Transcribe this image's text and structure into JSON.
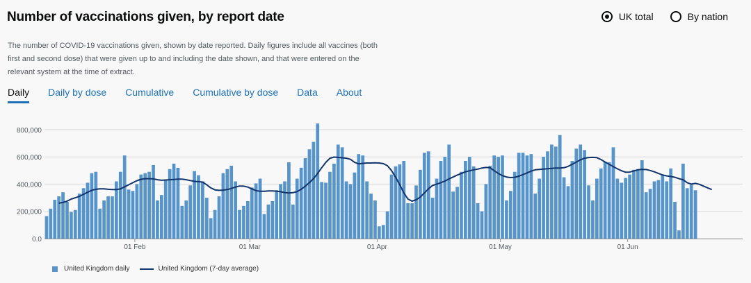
{
  "header": {
    "title": "Number of vaccinations given, by report date",
    "description": "The number of COVID-19 vaccinations given, shown by date reported. Daily figures include all vaccines (both first and second dose) that were given up to and including the date shown, and that were entered on the relevant system at the time of extract."
  },
  "radios": [
    {
      "label": "UK total",
      "checked": true
    },
    {
      "label": "By nation",
      "checked": false
    }
  ],
  "tabs": [
    {
      "label": "Daily",
      "active": true
    },
    {
      "label": "Daily by dose",
      "active": false
    },
    {
      "label": "Cumulative",
      "active": false
    },
    {
      "label": "Cumulative by dose",
      "active": false
    },
    {
      "label": "Data",
      "active": false
    },
    {
      "label": "About",
      "active": false
    }
  ],
  "colors": {
    "bar": "#5694ca",
    "line": "#12336b",
    "grid": "#d9d9d9",
    "tick_text": "#505a5f",
    "link": "#1d70b8"
  },
  "chart_data": {
    "type": "bar",
    "title": "",
    "xlabel": "",
    "ylabel": "",
    "ylim": [
      0,
      850000
    ],
    "y_ticks": [
      0,
      200000,
      400000,
      600000,
      800000
    ],
    "y_tick_labels": [
      "0.0",
      "200,000",
      "400,000",
      "600,000",
      "800,000"
    ],
    "x_range": [
      "2021-01-10",
      "2021-06-29"
    ],
    "x_ticks": [
      "2021-02-01",
      "2021-03-01",
      "2021-04-01",
      "2021-05-01",
      "2021-06-01"
    ],
    "x_tick_labels": [
      "01 Feb",
      "01 Mar",
      "01 Apr",
      "01 May",
      "01 Jun"
    ],
    "grid": true,
    "legend_position": "bottom-left",
    "series": [
      {
        "name": "United Kingdom daily",
        "type": "bar",
        "start_date": "2021-01-10",
        "values": [
          165000,
          220000,
          285000,
          310000,
          340000,
          270000,
          195000,
          210000,
          330000,
          370000,
          410000,
          480000,
          490000,
          220000,
          280000,
          310000,
          310000,
          420000,
          490000,
          610000,
          360000,
          350000,
          400000,
          470000,
          480000,
          490000,
          540000,
          280000,
          320000,
          430000,
          510000,
          550000,
          520000,
          240000,
          280000,
          390000,
          495000,
          465000,
          420000,
          300000,
          150000,
          210000,
          310000,
          480000,
          510000,
          535000,
          420000,
          210000,
          240000,
          275000,
          375000,
          405000,
          440000,
          180000,
          250000,
          275000,
          355000,
          400000,
          420000,
          560000,
          250000,
          440000,
          520000,
          590000,
          655000,
          710000,
          845000,
          415000,
          410000,
          490000,
          550000,
          690000,
          670000,
          420000,
          400000,
          485000,
          620000,
          610000,
          420000,
          330000,
          280000,
          90000,
          100000,
          200000,
          470000,
          530000,
          545000,
          570000,
          260000,
          260000,
          390000,
          505000,
          630000,
          640000,
          300000,
          440000,
          570000,
          600000,
          690000,
          345000,
          380000,
          490000,
          570000,
          600000,
          530000,
          260000,
          200000,
          400000,
          535000,
          610000,
          600000,
          610000,
          280000,
          350000,
          490000,
          630000,
          630000,
          610000,
          620000,
          330000,
          440000,
          600000,
          640000,
          690000,
          675000,
          760000,
          450000,
          385000,
          570000,
          660000,
          690000,
          650000,
          390000,
          280000,
          440000,
          515000,
          565000,
          560000,
          670000,
          440000,
          410000,
          445000,
          470000,
          505000,
          510000,
          575000,
          340000,
          365000,
          420000,
          430000,
          465000,
          420000,
          515000,
          270000,
          60000,
          550000,
          370000,
          395000,
          355000
        ]
      },
      {
        "name": "United Kingdom (7-day average)",
        "type": "line",
        "start_date": "2021-01-13",
        "values": [
          260000,
          265000,
          275000,
          290000,
          300000,
          310000,
          325000,
          340000,
          355000,
          362000,
          365000,
          365000,
          362000,
          360000,
          360000,
          365000,
          380000,
          395000,
          410000,
          425000,
          435000,
          440000,
          440000,
          438000,
          432000,
          428000,
          430000,
          432000,
          434000,
          436000,
          436000,
          432000,
          426000,
          420000,
          418000,
          415000,
          395000,
          372000,
          358000,
          354000,
          356000,
          360000,
          368000,
          378000,
          386000,
          385000,
          378000,
          365000,
          352000,
          347000,
          347000,
          350000,
          350000,
          348000,
          344000,
          338000,
          335000,
          337000,
          345000,
          362000,
          385000,
          410000,
          440000,
          478000,
          520000,
          560000,
          590000,
          598000,
          596000,
          593000,
          590000,
          582000,
          560000,
          548000,
          552000,
          555000,
          555000,
          556000,
          555000,
          550000,
          535000,
          500000,
          450000,
          395000,
          335000,
          290000,
          275000,
          285000,
          305000,
          335000,
          365000,
          390000,
          400000,
          410000,
          422000,
          438000,
          452000,
          466000,
          478000,
          490000,
          498000,
          505000,
          510000,
          518000,
          522000,
          520000,
          498000,
          478000,
          462000,
          452000,
          448000,
          450000,
          458000,
          470000,
          482000,
          495000,
          505000,
          508000,
          510000,
          513000,
          515000,
          518000,
          518000,
          520000,
          530000,
          545000,
          562000,
          578000,
          590000,
          595000,
          596000,
          594000,
          580000,
          562000,
          545000,
          528000,
          512000,
          498000,
          487000,
          488000,
          497000,
          505000,
          508000,
          507000,
          500000,
          490000,
          478000,
          467000,
          460000,
          456000,
          450000,
          440000,
          432000,
          410000,
          400000,
          405000,
          398000,
          385000,
          372000,
          360000
        ]
      }
    ]
  },
  "legend": {
    "bar_label": "United Kingdom daily",
    "line_label": "United Kingdom (7-day average)"
  }
}
